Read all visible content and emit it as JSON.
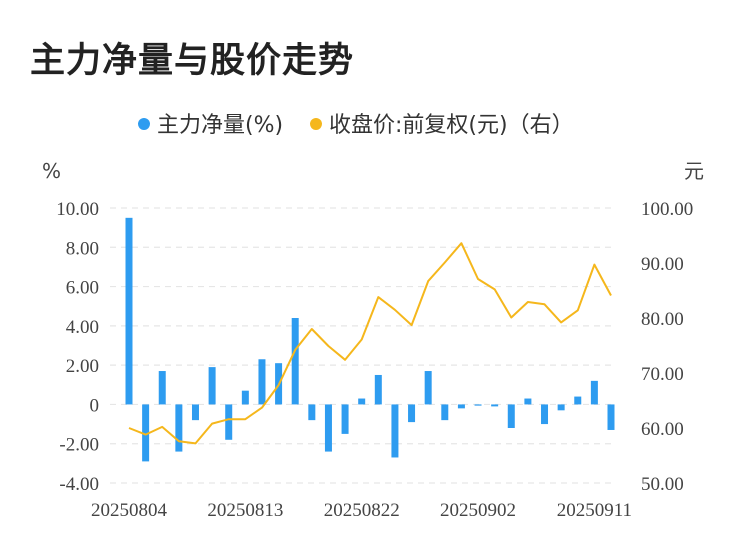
{
  "title": "主力净量与股价走势",
  "colors": {
    "bar": "#2e9cf0",
    "line": "#f5b71c",
    "grid": "#e6e6e6"
  },
  "chart_data": {
    "type": "bar+line",
    "legend_position": "top-center",
    "grid": true,
    "left_unit": "%",
    "right_unit": "元",
    "y_left": {
      "min": -4,
      "max": 10,
      "ticks": [
        "-4.00",
        "-2.00",
        "0",
        "2.00",
        "4.00",
        "6.00",
        "8.00",
        "10.00"
      ]
    },
    "y_right": {
      "min": 50,
      "max": 100,
      "ticks": [
        "50.00",
        "60.00",
        "70.00",
        "80.00",
        "90.00",
        "100.00"
      ]
    },
    "x_tick_labels": [
      "20250804",
      "20250813",
      "20250822",
      "20250902",
      "20250911"
    ],
    "x_tick_positions": [
      0,
      7,
      14,
      21,
      28
    ],
    "series": [
      {
        "name": "主力净量(%)",
        "type": "bar",
        "axis": "left",
        "values": [
          9.5,
          -2.9,
          1.7,
          -2.4,
          -0.8,
          1.9,
          -1.8,
          0.7,
          2.3,
          2.1,
          4.4,
          -0.8,
          -2.4,
          -1.5,
          0.3,
          1.5,
          -2.7,
          -0.9,
          1.7,
          -0.8,
          -0.2,
          -0.05,
          -0.1,
          -1.2,
          0.3,
          -1.0,
          -0.3,
          0.4,
          1.2,
          -1.3
        ]
      },
      {
        "name": "收盘价:前复权(元)（右）",
        "type": "line",
        "axis": "right",
        "values": [
          60.0,
          58.8,
          60.2,
          57.6,
          57.2,
          60.8,
          61.6,
          61.6,
          63.7,
          67.8,
          74.2,
          78.0,
          74.9,
          72.4,
          76.1,
          83.8,
          81.5,
          78.7,
          86.7,
          90.1,
          93.6,
          87.1,
          85.2,
          80.1,
          82.9,
          82.5,
          79.2,
          81.4,
          89.7,
          84.1
        ]
      }
    ]
  }
}
